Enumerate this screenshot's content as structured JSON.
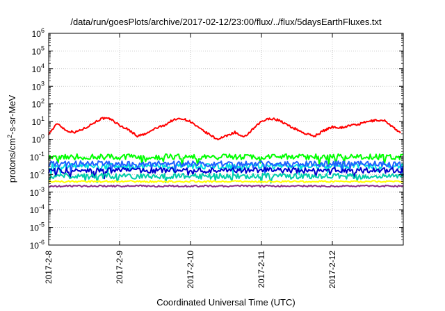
{
  "chart_data": {
    "type": "line",
    "title": "/data/run/goesPlots/archive/2017-02-12/23:00/flux/../flux/5daysEarthFluxes.txt",
    "xlabel": "Coordinated Universal Time (UTC)",
    "ylabel_parts": [
      "protons/cm",
      "2",
      "-s-sr-MeV"
    ],
    "yscale": "log",
    "grid": true,
    "legend": "none",
    "x_range": [
      "2017-02-08",
      "2017-02-13"
    ],
    "x_ticks": [
      "2017-2-8",
      "2017-2-9",
      "2017-2-10",
      "2017-2-11",
      "2017-2-12"
    ],
    "y_exponents": [
      -6,
      -5,
      -4,
      -3,
      -2,
      -1,
      0,
      1,
      2,
      3,
      4,
      5,
      6
    ],
    "y_tick_base": "10",
    "series": [
      {
        "color": "#ff0000",
        "x": [
          "2017-02-08 00:00",
          "2017-02-08 03:00",
          "2017-02-08 06:00",
          "2017-02-08 09:00",
          "2017-02-08 12:00",
          "2017-02-08 15:00",
          "2017-02-08 18:00",
          "2017-02-08 21:00",
          "2017-02-09 00:00",
          "2017-02-09 03:00",
          "2017-02-09 06:00",
          "2017-02-09 09:00",
          "2017-02-09 12:00",
          "2017-02-09 15:00",
          "2017-02-09 18:00",
          "2017-02-09 21:00",
          "2017-02-10 00:00",
          "2017-02-10 03:00",
          "2017-02-10 06:00",
          "2017-02-10 09:00",
          "2017-02-10 12:00",
          "2017-02-10 15:00",
          "2017-02-10 18:00",
          "2017-02-10 21:00",
          "2017-02-11 00:00",
          "2017-02-11 03:00",
          "2017-02-11 06:00",
          "2017-02-11 09:00",
          "2017-02-11 12:00",
          "2017-02-11 15:00",
          "2017-02-11 18:00",
          "2017-02-11 21:00",
          "2017-02-12 00:00",
          "2017-02-12 03:00",
          "2017-02-12 06:00",
          "2017-02-12 09:00",
          "2017-02-12 12:00",
          "2017-02-12 15:00",
          "2017-02-12 18:00",
          "2017-02-12 21:00",
          "2017-02-12 23:00"
        ],
        "y": [
          2.0,
          8.0,
          3.0,
          2.5,
          4.0,
          8.0,
          15.0,
          14.0,
          6.0,
          3.5,
          1.5,
          2.0,
          4.0,
          6.0,
          12.0,
          15.0,
          10.0,
          4.0,
          2.0,
          1.0,
          1.5,
          2.5,
          1.2,
          3.5,
          10.0,
          15.0,
          12.0,
          6.0,
          3.5,
          2.0,
          1.5,
          3.0,
          5.0,
          4.5,
          6.0,
          7.0,
          10.0,
          12.0,
          11.0,
          4.0,
          2.2
        ]
      },
      {
        "color": "#00ff00",
        "level": 0.1
      },
      {
        "color": "#00e0e0",
        "level": 0.03
      },
      {
        "color": "#2060ff",
        "level": 0.04
      },
      {
        "color": "#0000cc",
        "level": 0.017
      },
      {
        "color": "#00ccaa",
        "level": 0.008
      },
      {
        "color": "#ffff00",
        "level": 0.004
      },
      {
        "color": "#8b2a8b",
        "level": 0.0022
      }
    ]
  }
}
